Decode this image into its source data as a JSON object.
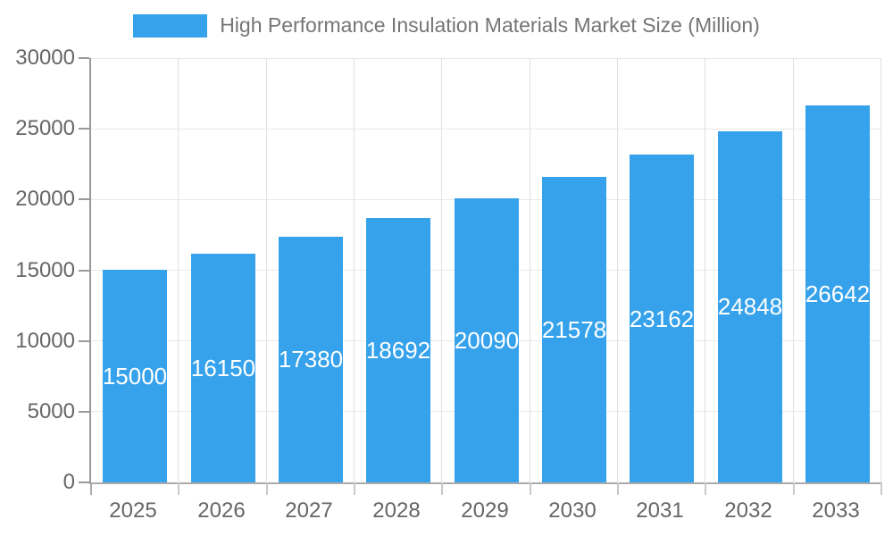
{
  "legend": {
    "position": "top",
    "items": [
      {
        "label": "High Performance Insulation Materials Market Size (Million)",
        "color": "#36a2eb"
      }
    ]
  },
  "chart_data": {
    "type": "bar",
    "title": "High Performance Insulation Materials Market Size (Million)",
    "categories": [
      "2025",
      "2026",
      "2027",
      "2028",
      "2029",
      "2030",
      "2031",
      "2032",
      "2033"
    ],
    "series": [
      {
        "name": "High Performance Insulation Materials Market Size (Million)",
        "color": "#36a2eb",
        "values": [
          15000,
          16150,
          17380,
          18692,
          20090,
          21578,
          23162,
          24848,
          26642
        ]
      }
    ],
    "xlabel": "",
    "ylabel": "",
    "ylim": [
      0,
      30000
    ],
    "y_ticks": [
      0,
      5000,
      10000,
      15000,
      20000,
      25000,
      30000
    ],
    "grid": true,
    "legend_position": "top",
    "value_labels": {
      "position": "inside-center",
      "color": "#ffffff"
    },
    "colors": {
      "background": "#ffffff",
      "bar": "#36a2eb",
      "grid_horizontal": "#e9e9e9",
      "grid_vertical": "#e0e0e0",
      "axis_line": "#999999",
      "tick_mark": "#c9c9c9",
      "zero_tick_mark": "#aaaaaa",
      "axis_text": "#666666",
      "legend_text": "#757575"
    }
  }
}
